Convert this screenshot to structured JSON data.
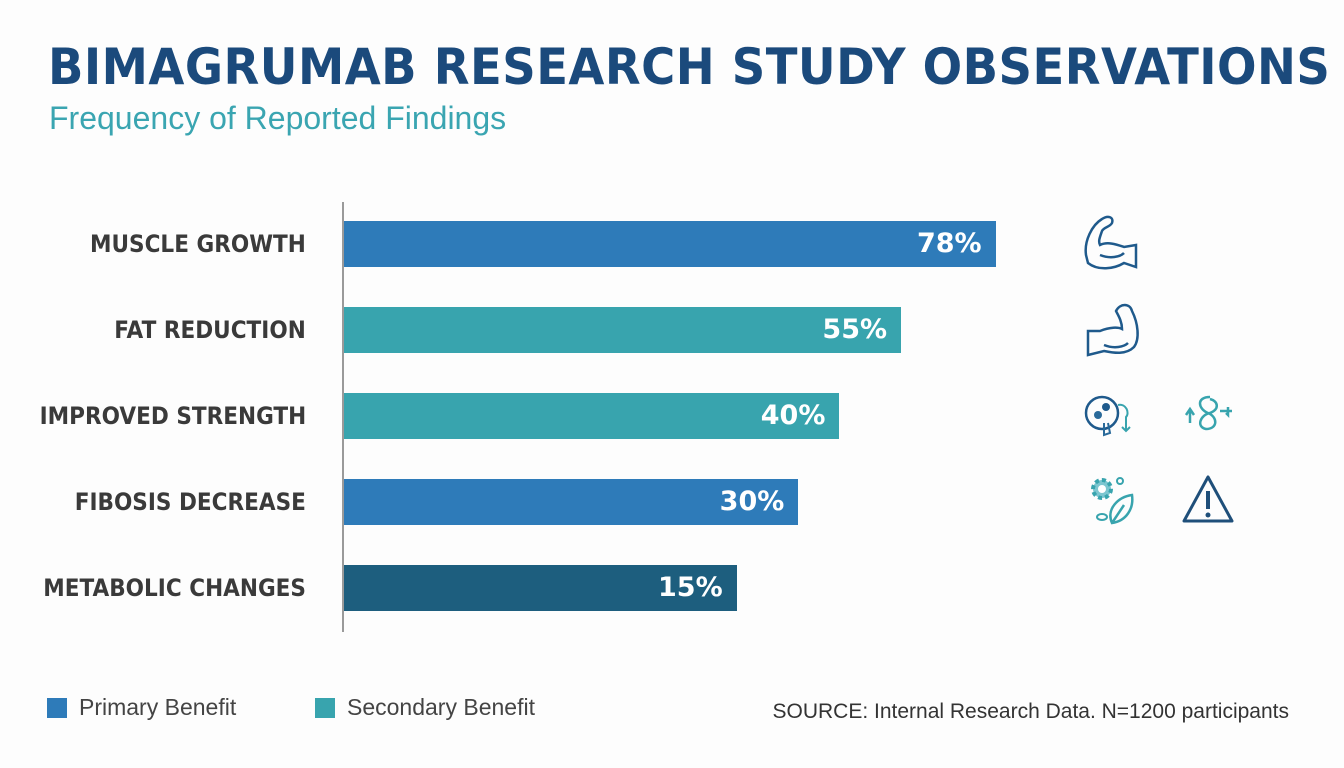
{
  "header": {
    "title": "BIMAGRUMAB RESEARCH STUDY OBSERVATIONS",
    "subtitle": "Frequency of Reported Findings"
  },
  "colors": {
    "primary": "#2e7bb9",
    "secondary": "#38a4ae",
    "dark": "#1d5e7e",
    "title": "#1b4a7c"
  },
  "chart_data": {
    "type": "bar",
    "orientation": "horizontal",
    "title": "BIMAGRUMAB RESEARCH STUDY OBSERVATIONS",
    "subtitle": "Frequency of Reported Findings",
    "categories": [
      "MUSCLE GROWTH",
      "FAT REDUCTION",
      "IMPROVED STRENGTH",
      "FIBOSIS DECREASE",
      "METABOLIC CHANGES"
    ],
    "values": [
      78,
      55,
      40,
      30,
      15
    ],
    "labels": [
      "78%",
      "55%",
      "40%",
      "30%",
      "15%"
    ],
    "bar_types": [
      "primary",
      "secondary",
      "secondary",
      "primary",
      "dark"
    ],
    "icons": [
      [
        "flexed-bicep-icon"
      ],
      [
        "flexed-arm-icon"
      ],
      [
        "metabolism-icon",
        "fat-cycle-icon"
      ],
      [
        "gear-leaf-icon",
        "warning-icon"
      ],
      []
    ],
    "unit": "%",
    "grid": false,
    "legend": {
      "placement": "bottom-left",
      "entries": [
        {
          "label": "Primary Benefit",
          "type": "primary"
        },
        {
          "label": "Secondary Benefit",
          "type": "secondary"
        }
      ]
    },
    "source": "SOURCE: Internal Research Data. N=1200 participants"
  }
}
